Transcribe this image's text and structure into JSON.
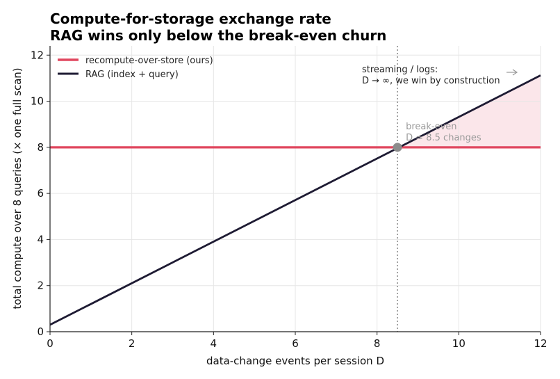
{
  "chart_data": {
    "type": "line",
    "title": [
      "Compute-for-storage exchange rate",
      "RAG wins only below the break-even churn"
    ],
    "xlabel": "data-change events per session  D",
    "ylabel": "total compute over 8 queries  (× one full scan)",
    "xlim": [
      0,
      12
    ],
    "ylim": [
      0,
      12.4
    ],
    "xticks": [
      0,
      2,
      4,
      6,
      8,
      10,
      12
    ],
    "yticks": [
      0,
      2,
      4,
      6,
      8,
      10,
      12
    ],
    "grid": true,
    "legend_position": "top-left",
    "series": [
      {
        "name": "recompute-over-store (ours)",
        "color": "#e0475f",
        "x": [
          0,
          12
        ],
        "y": [
          8,
          8
        ]
      },
      {
        "name": "RAG (index + query)",
        "color": "#1e1b33",
        "x": [
          0,
          12
        ],
        "y": [
          0.3,
          11.12
        ]
      }
    ],
    "break_even": {
      "x": 8.5,
      "y": 8,
      "label_lines": [
        "break-even",
        "D ≈ 8.5 changes"
      ]
    },
    "shaded_region": {
      "x_from": 8.5,
      "x_to": 12,
      "color": "#fbe6ea"
    },
    "annotation": {
      "lines": [
        "streaming / logs:",
        "D → ∞, we win by construction"
      ],
      "arrow": "right"
    }
  }
}
